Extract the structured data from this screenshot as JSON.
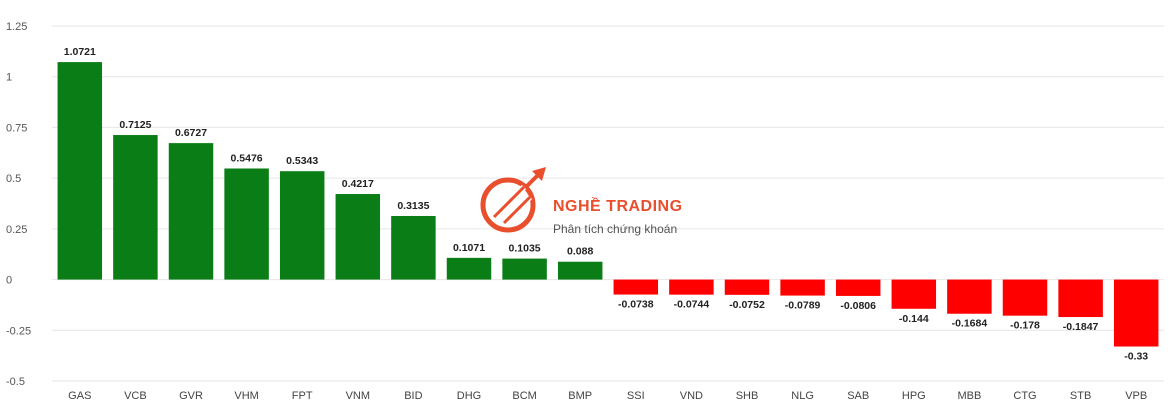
{
  "chart_data": {
    "type": "bar",
    "title": "",
    "xlabel": "",
    "ylabel": "",
    "ylim": [
      -0.5,
      1.25
    ],
    "yticks": [
      1.25,
      1,
      0.75,
      0.5,
      0.25,
      0,
      -0.25,
      -0.5
    ],
    "ytick_labels": [
      "1.25",
      "1",
      "0.75",
      "0.5",
      "0.25",
      "0",
      "-0.25",
      "-0.5"
    ],
    "grid": true,
    "legend": "none",
    "positive_color": "#0a7d16",
    "negative_color": "#ff0000",
    "categories": [
      "GAS",
      "VCB",
      "GVR",
      "VHM",
      "FPT",
      "VNM",
      "BID",
      "DHG",
      "BCM",
      "BMP",
      "SSI",
      "VND",
      "SHB",
      "NLG",
      "SAB",
      "HPG",
      "MBB",
      "CTG",
      "STB",
      "VPB"
    ],
    "values": [
      1.0721,
      0.7125,
      0.6727,
      0.5476,
      0.5343,
      0.4217,
      0.3135,
      0.1071,
      0.1035,
      0.088,
      -0.0738,
      -0.0744,
      -0.0752,
      -0.0789,
      -0.0806,
      -0.144,
      -0.1684,
      -0.178,
      -0.1847,
      -0.33
    ],
    "data_labels": [
      "1.0721",
      "0.7125",
      "0.6727",
      "0.5476",
      "0.5343",
      "0.4217",
      "0.3135",
      "0.1071",
      "0.1035",
      "0.088",
      "-0.0738",
      "-0.0744",
      "-0.0752",
      "-0.0789",
      "-0.0806",
      "-0.144",
      "-0.1684",
      "-0.178",
      "-0.1847",
      "-0.33"
    ]
  },
  "watermark": {
    "title": "NGHỀ TRADING",
    "subtitle": "Phân tích chứng khoán",
    "color": "#e8401c"
  }
}
